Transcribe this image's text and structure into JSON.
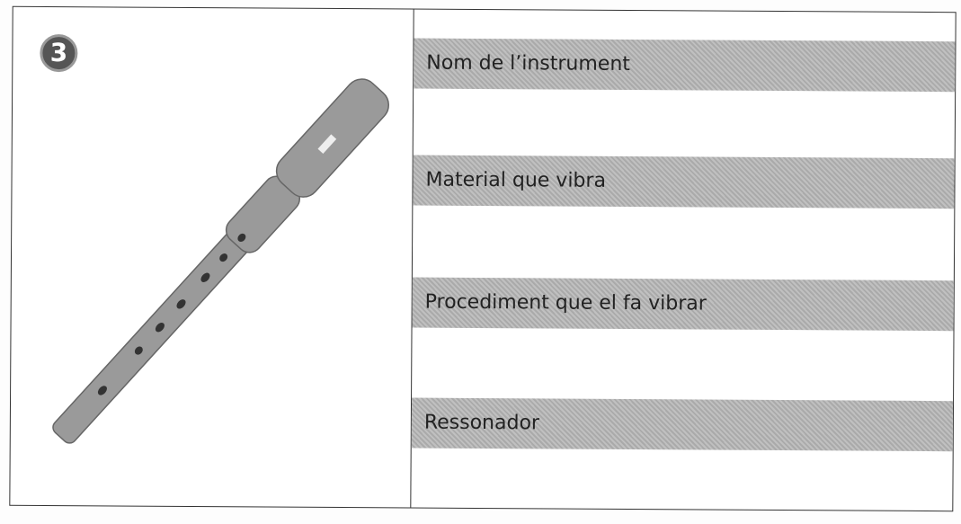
{
  "badge": "3",
  "fields": [
    {
      "label": "Nom de l’instrument"
    },
    {
      "label": "Material que vibra"
    },
    {
      "label": "Procediment que el fa vibrar"
    },
    {
      "label": "Ressonador"
    }
  ]
}
